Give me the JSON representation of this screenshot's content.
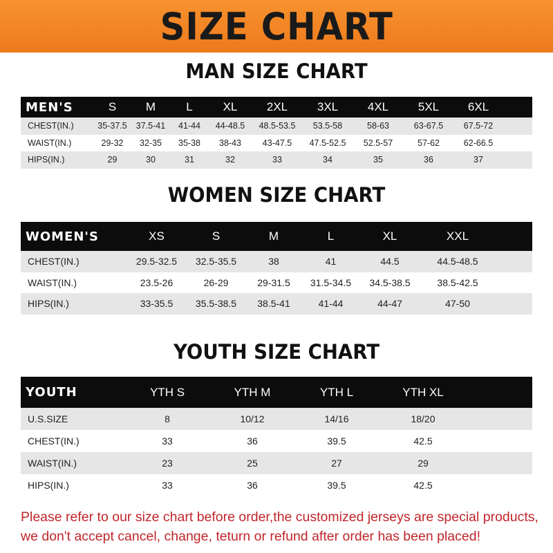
{
  "banner": {
    "title": "SIZE CHART",
    "color": "#f08424"
  },
  "men": {
    "title": "MAN SIZE CHART",
    "headers": [
      "MEN'S",
      "S",
      "M",
      "L",
      "XL",
      "2XL",
      "3XL",
      "4XL",
      "5XL",
      "6XL"
    ],
    "rows": [
      [
        "CHEST(IN.)",
        "35-37.5",
        "37.5-41",
        "41-44",
        "44-48.5",
        "48.5-53.5",
        "53.5-58",
        "58-63",
        "63-67.5",
        "67.5-72"
      ],
      [
        "WAIST(IN.)",
        "29-32",
        "32-35",
        "35-38",
        "38-43",
        "43-47.5",
        "47.5-52.5",
        "52.5-57",
        "57-62",
        "62-66.5"
      ],
      [
        "HIPS(IN.)",
        "29",
        "30",
        "31",
        "32",
        "33",
        "34",
        "35",
        "36",
        "37"
      ]
    ]
  },
  "women": {
    "title": "WOMEN SIZE CHART",
    "headers": [
      "WOMEN'S",
      "XS",
      "S",
      "M",
      "L",
      "XL",
      "XXL"
    ],
    "rows": [
      [
        "CHEST(IN.)",
        "29.5-32.5",
        "32.5-35.5",
        "38",
        "41",
        "44.5",
        "44.5-48.5"
      ],
      [
        "WAIST(IN.)",
        "23.5-26",
        "26-29",
        "29-31.5",
        "31.5-34.5",
        "34.5-38.5",
        "38.5-42.5"
      ],
      [
        "HIPS(IN.)",
        "33-35.5",
        "35.5-38.5",
        "38.5-41",
        "41-44",
        "44-47",
        "47-50"
      ]
    ]
  },
  "youth": {
    "title": "YOUTH SIZE CHART",
    "headers": [
      "YOUTH",
      "YTH S",
      "YTH M",
      "YTH L",
      "YTH XL"
    ],
    "rows": [
      [
        "U.S.SIZE",
        "8",
        "10/12",
        "14/16",
        "18/20"
      ],
      [
        "CHEST(IN.)",
        "33",
        "36",
        "39.5",
        "42.5"
      ],
      [
        "WAIST(IN.)",
        "23",
        "25",
        "27",
        "29"
      ],
      [
        "HIPS(IN.)",
        "33",
        "36",
        "39.5",
        "42.5"
      ]
    ]
  },
  "note": {
    "line1": "Please refer to our size chart before order,the customized jerseys are special products,",
    "line2": "we don't accept cancel, change, teturn or refund after order has been placed!",
    "color": "#c0262b"
  }
}
